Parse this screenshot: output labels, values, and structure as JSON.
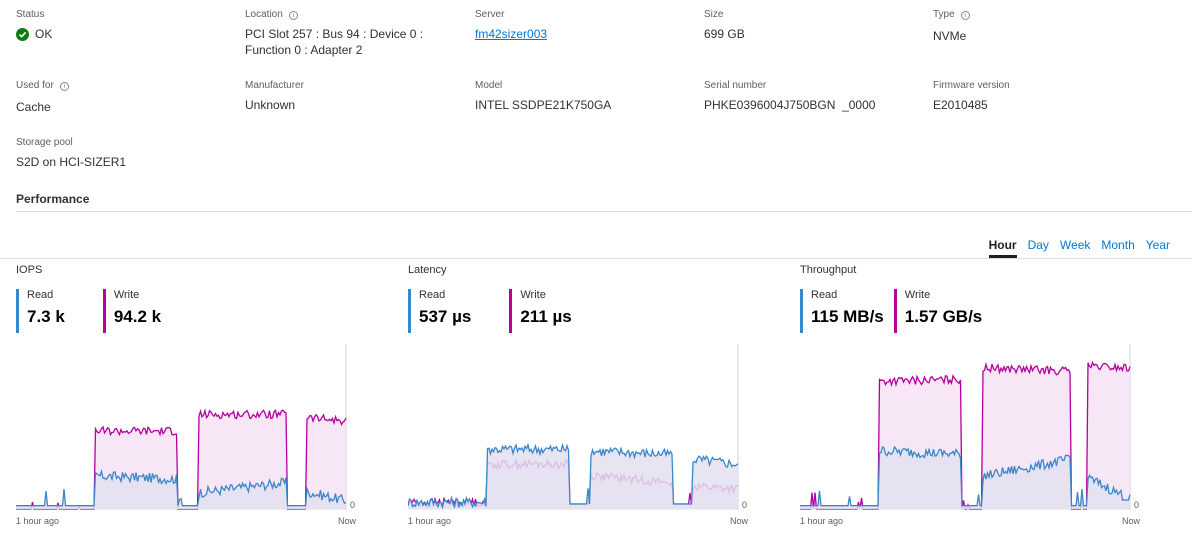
{
  "properties": [
    {
      "label": "Status",
      "value": "OK",
      "info": false,
      "type": "status"
    },
    {
      "label": "Location",
      "value": "PCI Slot 257 : Bus 94 : Device 0 :",
      "value2": "Function 0 : Adapter 2",
      "info": true
    },
    {
      "label": "Server",
      "value": "fm42sizer003",
      "type": "link",
      "info": false
    },
    {
      "label": "Size",
      "value": "699 GB",
      "info": false
    },
    {
      "label": "Type",
      "value": "NVMe",
      "info": true
    },
    {
      "label": "Used for",
      "value": "Cache",
      "info": true
    },
    {
      "label": "Manufacturer",
      "value": "Unknown",
      "info": false
    },
    {
      "label": "Model",
      "value": "INTEL SSDPE21K750GA",
      "info": false
    },
    {
      "label": "Serial number",
      "value": "PHKE0396004J750BGN  _0000",
      "info": false
    },
    {
      "label": "Firmware version",
      "value": "E2010485",
      "info": false
    },
    {
      "label": "Storage pool",
      "value": "S2D on HCI-SIZER1",
      "info": false
    }
  ],
  "performance": {
    "title": "Performance",
    "tabs": [
      {
        "label": "Hour",
        "active": true
      },
      {
        "label": "Day",
        "active": false
      },
      {
        "label": "Week",
        "active": false
      },
      {
        "label": "Month",
        "active": false
      },
      {
        "label": "Year",
        "active": false
      }
    ]
  },
  "colors": {
    "read": "#3a87c8",
    "write": "#b4009e",
    "read_fill": "#e3e1f0",
    "write_fill": "#f6e4f5",
    "ok": "#107c10",
    "link": "#0078d4"
  },
  "charts": [
    {
      "title": "IOPS",
      "read_label": "Read",
      "read_value": "7.3 k",
      "write_label": "Write",
      "write_value": "94.2 k",
      "x_start": "1 hour ago",
      "x_end": "Now",
      "y_zero": "0"
    },
    {
      "title": "Latency",
      "read_label": "Read",
      "read_value": "537 µs",
      "write_label": "Write",
      "write_value": "211 µs",
      "x_start": "1 hour ago",
      "x_end": "Now",
      "y_zero": "0"
    },
    {
      "title": "Throughput",
      "read_label": "Read",
      "read_value": "115 MB/s",
      "write_label": "Write",
      "write_value": "1.57 GB/s",
      "x_start": "1 hour ago",
      "x_end": "Now",
      "y_zero": "0"
    }
  ],
  "chart_data": [
    {
      "type": "area",
      "title": "IOPS",
      "xlabel": "",
      "ylabel": "",
      "x_ticks": [
        "1 hour ago",
        "Now"
      ],
      "y_ticks": [
        "0"
      ],
      "series": [
        {
          "name": "Read",
          "color": "#3a87c8",
          "segments": [
            [
              0,
              0.02
            ],
            [
              0.24,
              0.02
            ],
            [
              0.25,
              0.2
            ],
            [
              0.49,
              0.18
            ],
            [
              0.5,
              0.02
            ],
            [
              0.55,
              0.02
            ],
            [
              0.56,
              0.1
            ],
            [
              0.82,
              0.16
            ],
            [
              0.83,
              0.02
            ],
            [
              0.88,
              0.02
            ],
            [
              0.89,
              0.1
            ],
            [
              1.0,
              0.05
            ]
          ]
        },
        {
          "name": "Write",
          "color": "#b4009e",
          "segments": [
            [
              0,
              0
            ],
            [
              0.24,
              0
            ],
            [
              0.25,
              0.47
            ],
            [
              0.49,
              0.47
            ],
            [
              0.5,
              0
            ],
            [
              0.55,
              0
            ],
            [
              0.56,
              0.57
            ],
            [
              0.82,
              0.57
            ],
            [
              0.83,
              0
            ],
            [
              0.88,
              0
            ],
            [
              0.89,
              0.55
            ],
            [
              1.0,
              0.53
            ]
          ]
        }
      ]
    },
    {
      "type": "area",
      "title": "Latency",
      "xlabel": "",
      "ylabel": "",
      "x_ticks": [
        "1 hour ago",
        "Now"
      ],
      "y_ticks": [
        "0"
      ],
      "series": [
        {
          "name": "Read",
          "color": "#3a87c8",
          "segments": [
            [
              0,
              0.04
            ],
            [
              0.24,
              0.04
            ],
            [
              0.25,
              0.36
            ],
            [
              0.49,
              0.36
            ],
            [
              0.5,
              0.03
            ],
            [
              0.55,
              0.03
            ],
            [
              0.56,
              0.35
            ],
            [
              0.8,
              0.33
            ],
            [
              0.81,
              0.03
            ],
            [
              0.86,
              0.03
            ],
            [
              0.87,
              0.3
            ],
            [
              1.0,
              0.27
            ]
          ]
        },
        {
          "name": "Write",
          "color": "#b4009e",
          "segments": [
            [
              0,
              0.04
            ],
            [
              0.24,
              0.04
            ],
            [
              0.25,
              0.27
            ],
            [
              0.49,
              0.27
            ],
            [
              0.5,
              0.03
            ],
            [
              0.55,
              0.03
            ],
            [
              0.56,
              0.2
            ],
            [
              0.8,
              0.16
            ],
            [
              0.81,
              0.03
            ],
            [
              0.86,
              0.03
            ],
            [
              0.87,
              0.14
            ],
            [
              1.0,
              0.12
            ]
          ]
        }
      ]
    },
    {
      "type": "area",
      "title": "Throughput",
      "xlabel": "",
      "ylabel": "",
      "x_ticks": [
        "1 hour ago",
        "Now"
      ],
      "y_ticks": [
        "0"
      ],
      "series": [
        {
          "name": "Read",
          "color": "#3a87c8",
          "segments": [
            [
              0,
              0.02
            ],
            [
              0.24,
              0.02
            ],
            [
              0.25,
              0.35
            ],
            [
              0.49,
              0.33
            ],
            [
              0.5,
              0.02
            ],
            [
              0.55,
              0.02
            ],
            [
              0.56,
              0.2
            ],
            [
              0.82,
              0.3
            ],
            [
              0.83,
              0.02
            ],
            [
              0.87,
              0.02
            ],
            [
              0.88,
              0.18
            ],
            [
              1.0,
              0.06
            ]
          ]
        },
        {
          "name": "Write",
          "color": "#b4009e",
          "segments": [
            [
              0,
              0
            ],
            [
              0.24,
              0
            ],
            [
              0.25,
              0.77
            ],
            [
              0.49,
              0.78
            ],
            [
              0.5,
              0
            ],
            [
              0.55,
              0
            ],
            [
              0.56,
              0.85
            ],
            [
              0.82,
              0.83
            ],
            [
              0.83,
              0
            ],
            [
              0.87,
              0
            ],
            [
              0.88,
              0.86
            ],
            [
              1.0,
              0.85
            ]
          ]
        }
      ]
    }
  ]
}
